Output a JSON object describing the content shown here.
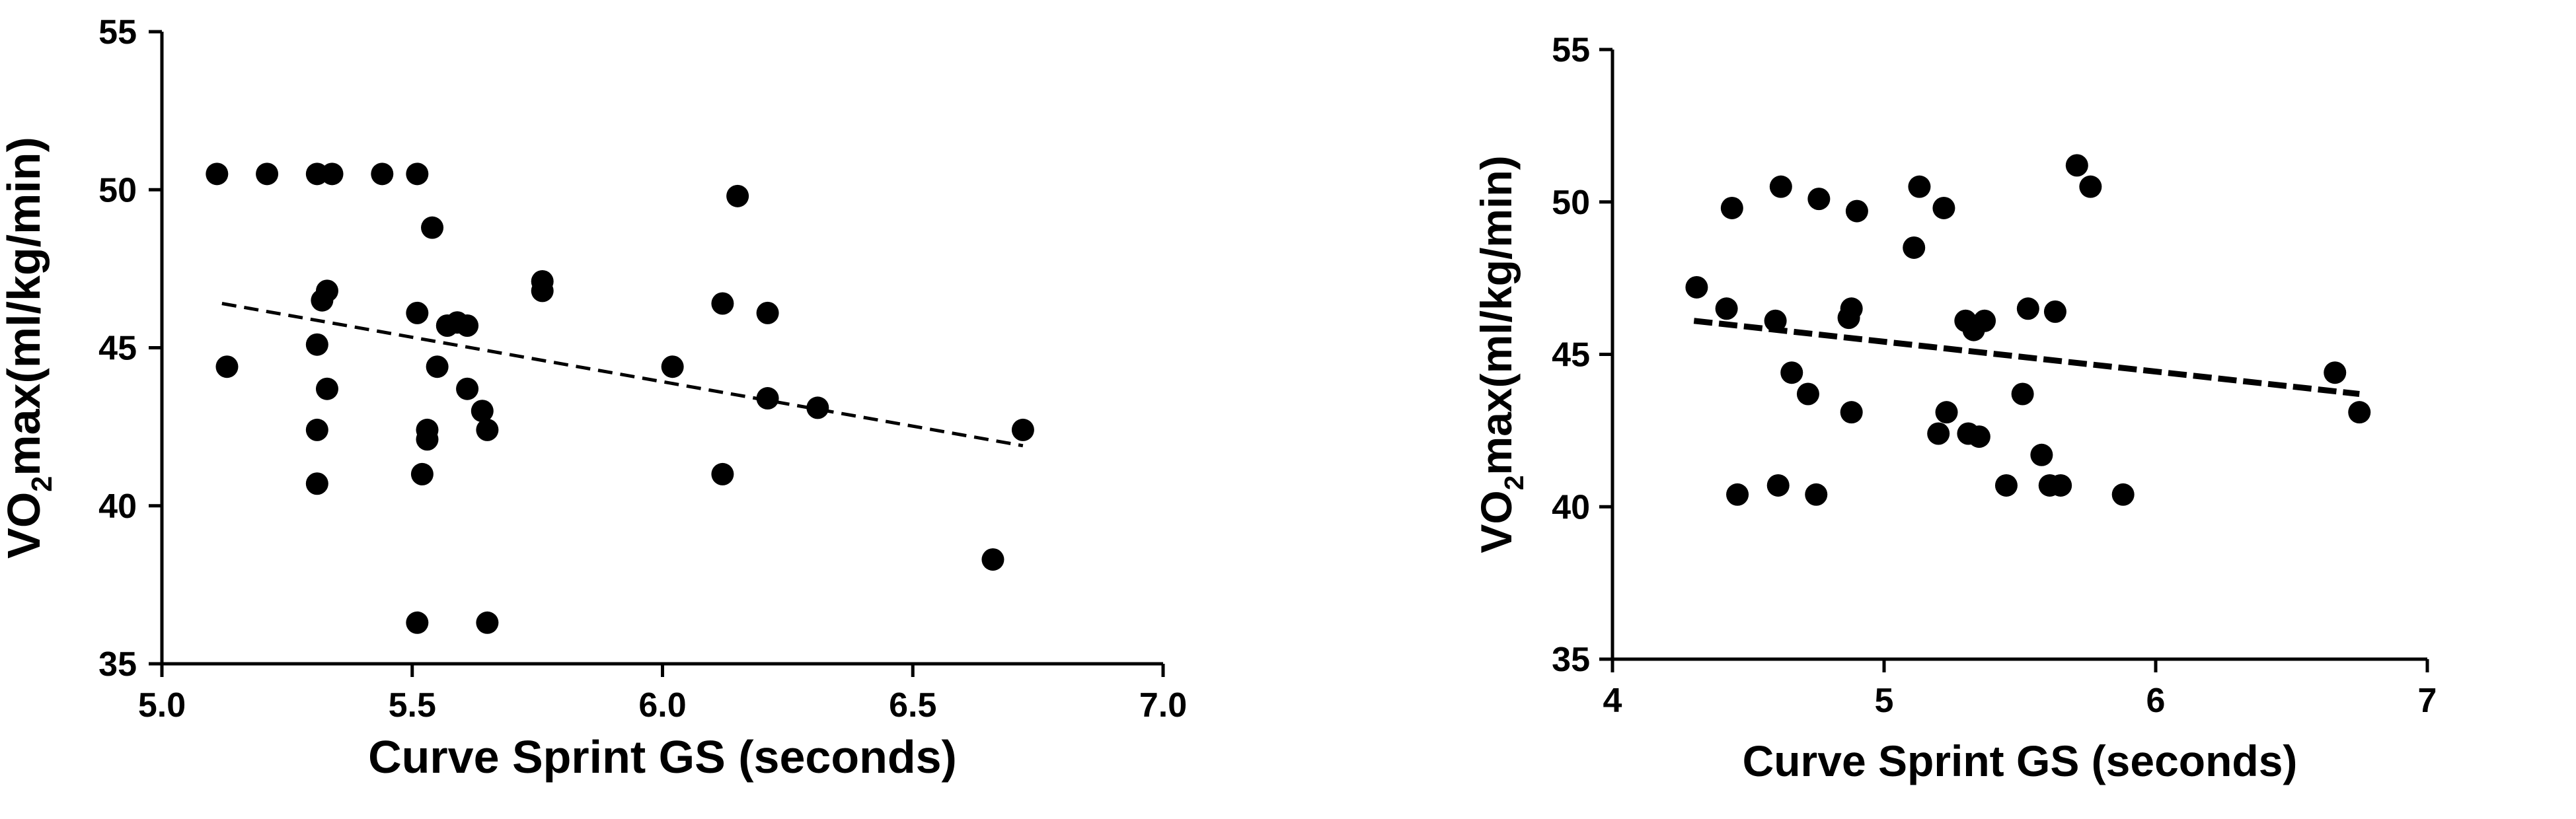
{
  "chart_data": [
    {
      "type": "scatter",
      "xlabel": "Curve Sprint GS (seconds)",
      "ylabel_main": "VO",
      "ylabel_sub": "2",
      "ylabel_rest": "max(ml/kg/min)",
      "xlim": [
        5.0,
        7.0
      ],
      "ylim": [
        35,
        55
      ],
      "x_ticks": [
        "5.0",
        "5.5",
        "6.0",
        "6.5",
        "7.0"
      ],
      "x_tick_values": [
        5.0,
        5.5,
        6.0,
        6.5,
        7.0
      ],
      "y_ticks": [
        "35",
        "40",
        "45",
        "50",
        "55"
      ],
      "y_tick_values": [
        35,
        40,
        45,
        50,
        55
      ],
      "grid": false,
      "trendline": {
        "style": "dashed",
        "x": [
          5.12,
          6.72
        ],
        "y": [
          46.4,
          41.9
        ]
      },
      "points": [
        {
          "x": 5.11,
          "y": 50.5
        },
        {
          "x": 5.21,
          "y": 50.5
        },
        {
          "x": 5.31,
          "y": 50.5
        },
        {
          "x": 5.34,
          "y": 50.5
        },
        {
          "x": 5.44,
          "y": 50.5
        },
        {
          "x": 5.51,
          "y": 50.5
        },
        {
          "x": 5.13,
          "y": 44.4
        },
        {
          "x": 5.31,
          "y": 45.1
        },
        {
          "x": 5.32,
          "y": 46.5
        },
        {
          "x": 5.33,
          "y": 46.8
        },
        {
          "x": 5.33,
          "y": 43.7
        },
        {
          "x": 5.31,
          "y": 42.4
        },
        {
          "x": 5.31,
          "y": 40.7
        },
        {
          "x": 5.51,
          "y": 46.1
        },
        {
          "x": 5.54,
          "y": 48.8
        },
        {
          "x": 5.55,
          "y": 44.4
        },
        {
          "x": 5.57,
          "y": 45.7
        },
        {
          "x": 5.59,
          "y": 45.8
        },
        {
          "x": 5.61,
          "y": 45.7
        },
        {
          "x": 5.61,
          "y": 43.7
        },
        {
          "x": 5.64,
          "y": 43.0
        },
        {
          "x": 5.65,
          "y": 42.4
        },
        {
          "x": 5.53,
          "y": 42.4
        },
        {
          "x": 5.53,
          "y": 42.1
        },
        {
          "x": 5.52,
          "y": 41.0
        },
        {
          "x": 5.76,
          "y": 47.1
        },
        {
          "x": 5.76,
          "y": 46.8
        },
        {
          "x": 6.02,
          "y": 44.4
        },
        {
          "x": 6.12,
          "y": 46.4
        },
        {
          "x": 6.15,
          "y": 49.8
        },
        {
          "x": 6.21,
          "y": 46.1
        },
        {
          "x": 6.21,
          "y": 43.4
        },
        {
          "x": 6.31,
          "y": 43.1
        },
        {
          "x": 6.12,
          "y": 41.0
        },
        {
          "x": 6.72,
          "y": 42.4
        },
        {
          "x": 6.66,
          "y": 38.3
        },
        {
          "x": 5.51,
          "y": 36.3
        },
        {
          "x": 5.65,
          "y": 36.3
        }
      ]
    },
    {
      "type": "scatter",
      "xlabel": "Curve Sprint GS (seconds)",
      "ylabel_main": "VO",
      "ylabel_sub": "2",
      "ylabel_rest": "max(ml/kg/min)",
      "xlim": [
        4,
        7
      ],
      "ylim": [
        35,
        55
      ],
      "x_ticks": [
        "4",
        "5",
        "6",
        "7"
      ],
      "x_tick_values": [
        4,
        5,
        6,
        7
      ],
      "y_ticks": [
        "35",
        "40",
        "45",
        "50",
        "55"
      ],
      "y_tick_values": [
        35,
        40,
        45,
        50,
        55
      ],
      "grid": false,
      "trendline": {
        "style": "dashed",
        "x": [
          4.3,
          6.75
        ],
        "y": [
          46.1,
          43.7
        ]
      },
      "points": [
        {
          "x": 4.31,
          "y": 47.2
        },
        {
          "x": 4.42,
          "y": 46.5
        },
        {
          "x": 4.44,
          "y": 49.8
        },
        {
          "x": 4.46,
          "y": 40.4
        },
        {
          "x": 4.6,
          "y": 46.1
        },
        {
          "x": 4.61,
          "y": 40.7
        },
        {
          "x": 4.62,
          "y": 50.5
        },
        {
          "x": 4.66,
          "y": 44.4
        },
        {
          "x": 4.72,
          "y": 43.7
        },
        {
          "x": 4.75,
          "y": 40.4
        },
        {
          "x": 4.76,
          "y": 50.1
        },
        {
          "x": 4.87,
          "y": 46.2
        },
        {
          "x": 4.88,
          "y": 43.1
        },
        {
          "x": 4.88,
          "y": 46.5
        },
        {
          "x": 4.9,
          "y": 49.7
        },
        {
          "x": 5.11,
          "y": 48.5
        },
        {
          "x": 5.13,
          "y": 50.5
        },
        {
          "x": 5.2,
          "y": 42.4
        },
        {
          "x": 5.22,
          "y": 49.8
        },
        {
          "x": 5.23,
          "y": 43.1
        },
        {
          "x": 5.3,
          "y": 46.1
        },
        {
          "x": 5.31,
          "y": 42.4
        },
        {
          "x": 5.33,
          "y": 45.8
        },
        {
          "x": 5.35,
          "y": 42.3
        },
        {
          "x": 5.37,
          "y": 46.1
        },
        {
          "x": 5.45,
          "y": 40.7
        },
        {
          "x": 5.51,
          "y": 43.7
        },
        {
          "x": 5.53,
          "y": 46.5
        },
        {
          "x": 5.58,
          "y": 41.7
        },
        {
          "x": 5.61,
          "y": 40.7
        },
        {
          "x": 5.63,
          "y": 46.4
        },
        {
          "x": 5.65,
          "y": 40.7
        },
        {
          "x": 5.71,
          "y": 51.2
        },
        {
          "x": 5.76,
          "y": 50.5
        },
        {
          "x": 5.88,
          "y": 40.4
        },
        {
          "x": 6.66,
          "y": 44.4
        },
        {
          "x": 6.75,
          "y": 43.1
        }
      ]
    }
  ]
}
